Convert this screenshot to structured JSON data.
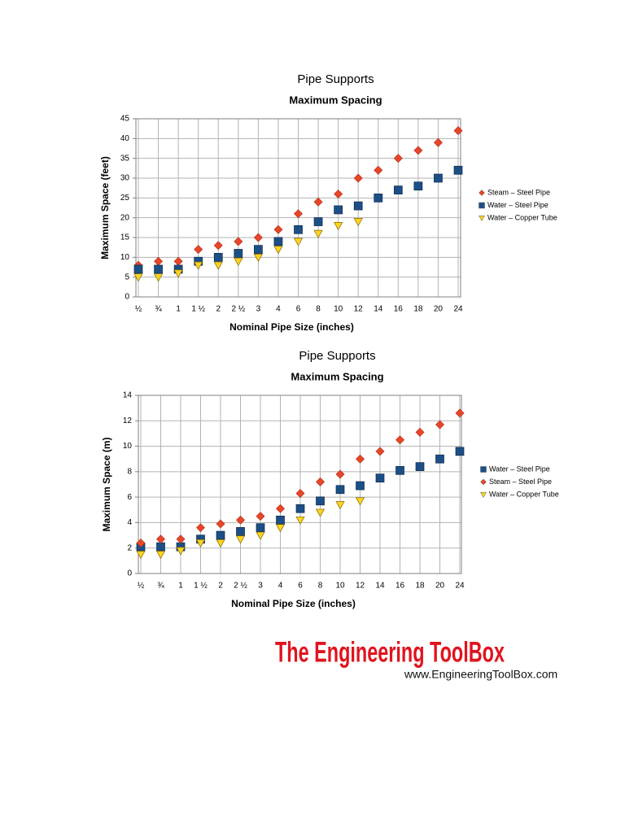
{
  "chart_data": [
    {
      "type": "scatter",
      "title": "Pipe Supports",
      "subtitle": "Maximum Spacing",
      "y_label": "Maximum Space (feet)",
      "x_label": "Nominal Pipe Size (inches)",
      "categories": [
        "½",
        "¾",
        "1",
        "1 ½",
        "2",
        "2 ½",
        "3",
        "4",
        "6",
        "8",
        "10",
        "12",
        "14",
        "16",
        "18",
        "20",
        "24"
      ],
      "series": [
        {
          "name": "Steam – Steel Pipe",
          "color": "#e8462a",
          "marker": "diamond",
          "values": [
            8,
            9,
            9,
            12,
            13,
            14,
            15,
            17,
            21,
            24,
            26,
            30,
            32,
            35,
            37,
            39,
            42
          ]
        },
        {
          "name": "Water – Steel Pipe",
          "color": "#1c4f86",
          "marker": "square",
          "values": [
            7,
            7,
            7,
            9,
            10,
            11,
            12,
            14,
            17,
            19,
            22,
            23,
            25,
            27,
            28,
            30,
            32
          ]
        },
        {
          "name": "Water – Copper Tube",
          "color": "#ffd320",
          "marker": "triangle",
          "values": [
            5,
            5,
            6,
            8,
            8,
            9,
            10,
            12,
            14,
            16,
            18,
            19,
            null,
            null,
            null,
            null,
            null
          ]
        }
      ],
      "ylim": [
        0,
        45
      ],
      "yticks": [
        0,
        5,
        10,
        15,
        20,
        25,
        30,
        35,
        40,
        45
      ],
      "grid": true,
      "legend": "right"
    },
    {
      "type": "scatter",
      "title": "Pipe Supports",
      "subtitle": "Maximum Spacing",
      "y_label": "Maximum Space (m)",
      "x_label": "Nominal Pipe Size (inches)",
      "categories": [
        "½",
        "¾",
        "1",
        "1 ½",
        "2",
        "2 ½",
        "3",
        "4",
        "6",
        "8",
        "10",
        "12",
        "14",
        "16",
        "18",
        "20",
        "24"
      ],
      "series": [
        {
          "name": "Water – Steel Pipe",
          "color": "#1c4f86",
          "marker": "square",
          "values": [
            2.1,
            2.1,
            2.1,
            2.7,
            3.0,
            3.3,
            3.6,
            4.2,
            5.1,
            5.7,
            6.6,
            6.9,
            7.5,
            8.1,
            8.4,
            9.0,
            9.6
          ]
        },
        {
          "name": "Steam – Steel Pipe",
          "color": "#e8462a",
          "marker": "diamond",
          "values": [
            2.4,
            2.7,
            2.7,
            3.6,
            3.9,
            4.2,
            4.5,
            5.1,
            6.3,
            7.2,
            7.8,
            9.0,
            9.6,
            10.5,
            11.1,
            11.7,
            12.6
          ]
        },
        {
          "name": "Water – Copper Tube",
          "color": "#ffd320",
          "marker": "triangle",
          "values": [
            1.5,
            1.5,
            1.8,
            2.4,
            2.4,
            2.7,
            3.0,
            3.6,
            4.2,
            4.8,
            5.4,
            5.7,
            null,
            null,
            null,
            null,
            null
          ]
        }
      ],
      "ylim": [
        0,
        14
      ],
      "yticks": [
        0,
        2,
        4,
        6,
        8,
        10,
        12,
        14
      ],
      "grid": true,
      "legend": "right"
    }
  ],
  "logo": {
    "title": "The Engineering ToolBox",
    "url": "www.EngineeringToolBox.com"
  }
}
